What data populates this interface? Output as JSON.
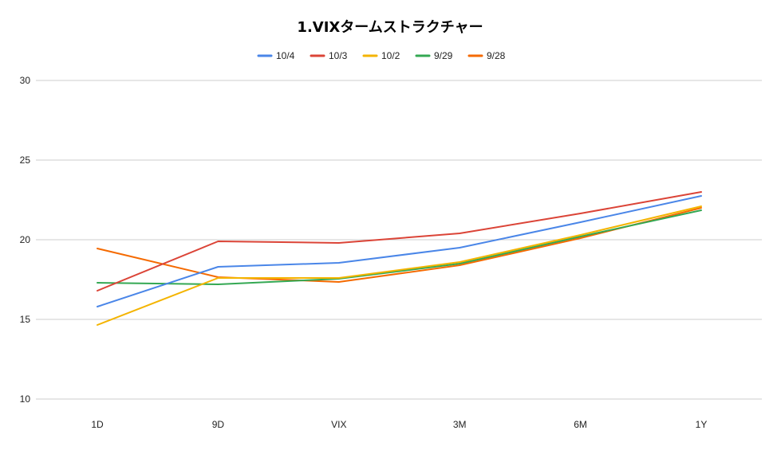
{
  "chart_data": {
    "type": "line",
    "title": "1.VIXタームストラクチャー",
    "categories": [
      "1D",
      "9D",
      "VIX",
      "3M",
      "6M",
      "1Y"
    ],
    "ylim": [
      10,
      30
    ],
    "yticks": [
      10,
      15,
      20,
      25,
      30
    ],
    "grid": true,
    "legend_position": "top",
    "series": [
      {
        "name": "10/4",
        "color": "#4a86e8",
        "values": [
          15.8,
          18.3,
          18.55,
          19.5,
          21.1,
          22.75
        ]
      },
      {
        "name": "10/3",
        "color": "#db4437",
        "values": [
          16.8,
          19.9,
          19.8,
          20.4,
          21.65,
          23.0
        ]
      },
      {
        "name": "10/2",
        "color": "#f4b400",
        "values": [
          14.65,
          17.6,
          17.6,
          18.6,
          20.3,
          22.1
        ]
      },
      {
        "name": "9/29",
        "color": "#34a853",
        "values": [
          17.3,
          17.2,
          17.55,
          18.5,
          20.2,
          21.85
        ]
      },
      {
        "name": "9/28",
        "color": "#f56a00",
        "values": [
          19.45,
          17.65,
          17.35,
          18.4,
          20.1,
          22.0
        ]
      }
    ]
  }
}
